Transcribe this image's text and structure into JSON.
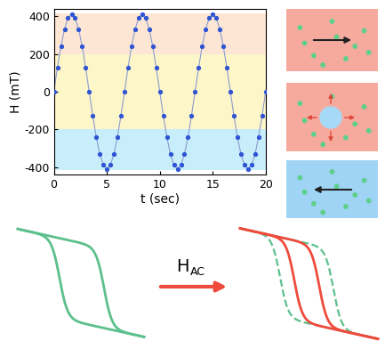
{
  "chart_data": {
    "type": "line",
    "xlabel": "t (sec)",
    "ylabel": "H (mT)",
    "x": [
      0,
      0.33,
      0.67,
      1,
      1.33,
      1.67,
      2,
      2.33,
      2.67,
      3,
      3.33,
      3.67,
      4,
      4.33,
      4.67,
      5,
      5.33,
      5.67,
      6,
      6.33,
      6.67,
      7,
      7.33,
      7.67,
      8,
      8.33,
      8.67,
      9,
      9.33,
      9.67,
      10,
      10.33,
      10.67,
      11,
      11.33,
      11.67,
      12,
      12.33,
      12.67,
      13,
      13.33,
      13.67,
      14,
      14.33,
      14.67,
      15,
      15.33,
      15.67,
      16,
      16.33,
      16.67,
      17,
      17.33,
      17.67,
      18,
      18.33,
      18.67,
      19,
      19.33,
      19.67,
      20
    ],
    "values": [
      0,
      127,
      241,
      332,
      390,
      410,
      390,
      332,
      241,
      127,
      0,
      -127,
      -241,
      -332,
      -390,
      -410,
      -390,
      -332,
      -241,
      -127,
      0,
      127,
      241,
      332,
      390,
      410,
      390,
      332,
      241,
      127,
      0,
      -127,
      -241,
      -332,
      -390,
      -410,
      -390,
      -332,
      -241,
      -127,
      0,
      127,
      241,
      332,
      390,
      410,
      390,
      332,
      241,
      127,
      0,
      -127,
      -241,
      -332,
      -390,
      -410,
      -390,
      -332,
      -241,
      -127,
      0
    ],
    "color": "#2f55d4",
    "marker": "o",
    "line_style": "solid",
    "xlim": [
      0,
      20
    ],
    "xticks": [
      0,
      5,
      10,
      15,
      20
    ],
    "ylim": [
      -440,
      440
    ],
    "yticks": [
      -400,
      -200,
      0,
      200,
      400
    ],
    "bands": [
      {
        "from": 200,
        "to": 415,
        "color": "#fde6d3"
      },
      {
        "from": -200,
        "to": 200,
        "color": "#fdf6c9"
      },
      {
        "from": -415,
        "to": -200,
        "color": "#c9eefb"
      }
    ]
  },
  "diagram": {
    "arrow_label": {
      "main": "H",
      "sub": "AC"
    }
  }
}
